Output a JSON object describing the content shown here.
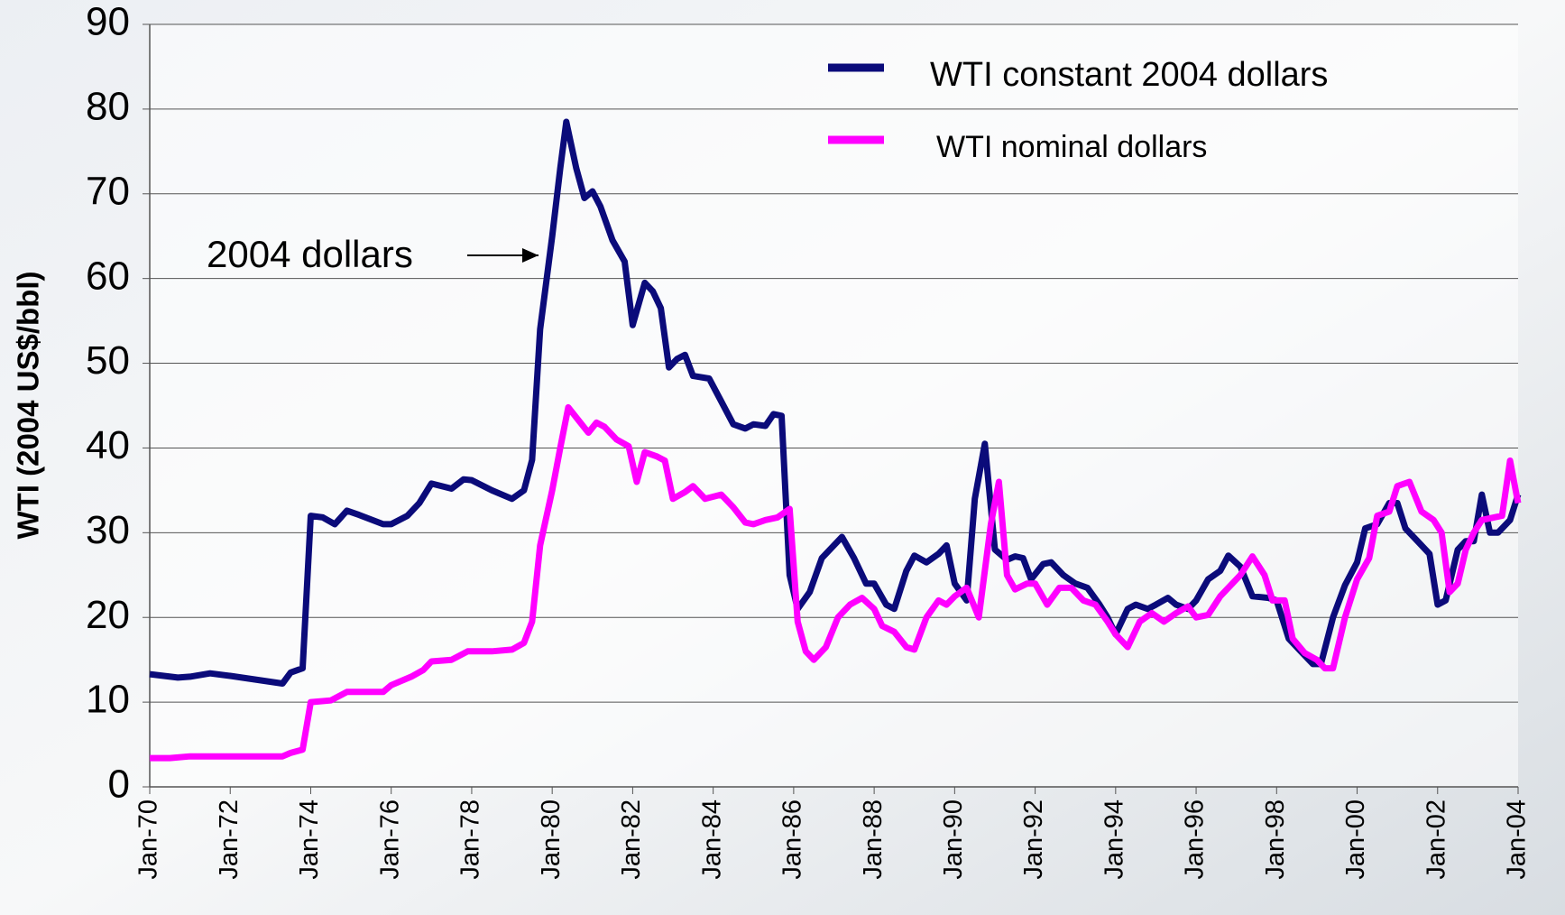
{
  "chart_data": {
    "type": "line",
    "y_label": "WTI (2004 US$/bbl)",
    "annotation": "2004 dollars",
    "ylim": [
      0,
      90
    ],
    "yticks": [
      0,
      10,
      20,
      30,
      40,
      50,
      60,
      70,
      80,
      90
    ],
    "xlim": [
      1970,
      2004
    ],
    "xticks": [
      {
        "value": 1970,
        "label": "Jan-70"
      },
      {
        "value": 1972,
        "label": "Jan-72"
      },
      {
        "value": 1974,
        "label": "Jan-74"
      },
      {
        "value": 1976,
        "label": "Jan-76"
      },
      {
        "value": 1978,
        "label": "Jan-78"
      },
      {
        "value": 1980,
        "label": "Jan-80"
      },
      {
        "value": 1982,
        "label": "Jan-82"
      },
      {
        "value": 1984,
        "label": "Jan-84"
      },
      {
        "value": 1986,
        "label": "Jan-86"
      },
      {
        "value": 1988,
        "label": "Jan-88"
      },
      {
        "value": 1990,
        "label": "Jan-90"
      },
      {
        "value": 1992,
        "label": "Jan-92"
      },
      {
        "value": 1994,
        "label": "Jan-94"
      },
      {
        "value": 1996,
        "label": "Jan-96"
      },
      {
        "value": 1998,
        "label": "Jan-98"
      },
      {
        "value": 2000,
        "label": "Jan-00"
      },
      {
        "value": 2002,
        "label": "Jan-02"
      },
      {
        "value": 2004,
        "label": "Jan-04"
      }
    ],
    "grid": true,
    "series": [
      {
        "name": "WTI constant 2004 dollars",
        "color": "#0b0b7a",
        "x": [
          1970.0,
          1970.7,
          1971.0,
          1971.5,
          1972.0,
          1973.3,
          1973.5,
          1973.8,
          1974.0,
          1974.3,
          1974.6,
          1974.9,
          1975.2,
          1975.8,
          1976.0,
          1976.4,
          1976.7,
          1977.0,
          1977.5,
          1977.8,
          1978.0,
          1978.5,
          1979.0,
          1979.3,
          1979.5,
          1979.7,
          1980.0,
          1980.2,
          1980.35,
          1980.6,
          1980.8,
          1981.0,
          1981.2,
          1981.5,
          1981.8,
          1982.0,
          1982.3,
          1982.5,
          1982.7,
          1982.9,
          1983.1,
          1983.3,
          1983.5,
          1983.9,
          1984.2,
          1984.5,
          1984.8,
          1985.0,
          1985.3,
          1985.5,
          1985.7,
          1985.9,
          1986.1,
          1986.4,
          1986.7,
          1987.0,
          1987.2,
          1987.5,
          1987.8,
          1988.0,
          1988.3,
          1988.5,
          1988.8,
          1989.0,
          1989.3,
          1989.6,
          1989.8,
          1990.0,
          1990.3,
          1990.5,
          1990.75,
          1991.0,
          1991.3,
          1991.5,
          1991.7,
          1991.9,
          1992.2,
          1992.4,
          1992.7,
          1993.0,
          1993.3,
          1993.6,
          1993.8,
          1994.0,
          1994.3,
          1994.5,
          1994.8,
          1995.0,
          1995.3,
          1995.5,
          1995.8,
          1996.0,
          1996.3,
          1996.6,
          1996.8,
          1997.1,
          1997.4,
          1997.8,
          1998.0,
          1998.3,
          1998.6,
          1998.9,
          1999.1,
          1999.4,
          1999.7,
          2000.0,
          2000.2,
          2000.5,
          2000.8,
          2001.0,
          2001.2,
          2001.5,
          2001.8,
          2002.0,
          2002.2,
          2002.5,
          2002.7,
          2002.9,
          2003.1,
          2003.3,
          2003.5,
          2003.8,
          2004.0
        ],
        "values": [
          13.3,
          12.9,
          13.0,
          13.4,
          13.1,
          12.2,
          13.5,
          14.0,
          32.0,
          31.8,
          31.0,
          32.6,
          32.1,
          31.0,
          31.0,
          32.0,
          33.5,
          35.8,
          35.2,
          36.3,
          36.2,
          35.0,
          34.0,
          35.0,
          38.6,
          54.0,
          65.0,
          73.0,
          78.5,
          73.0,
          69.5,
          70.3,
          68.5,
          64.5,
          62.0,
          54.5,
          59.5,
          58.5,
          56.5,
          49.5,
          50.5,
          51.0,
          48.5,
          48.2,
          45.5,
          42.8,
          42.3,
          42.8,
          42.6,
          44.0,
          43.8,
          25.0,
          21.0,
          23.0,
          27.0,
          28.5,
          29.5,
          27.0,
          24.0,
          24.0,
          21.5,
          21.0,
          25.5,
          27.3,
          26.5,
          27.5,
          28.5,
          24.0,
          22.0,
          34.0,
          40.5,
          28.0,
          26.8,
          27.2,
          27.0,
          24.5,
          26.3,
          26.5,
          25.0,
          24.0,
          23.5,
          21.5,
          20.0,
          18.0,
          21.0,
          21.5,
          21.0,
          21.5,
          22.3,
          21.5,
          21.0,
          22.0,
          24.5,
          25.5,
          27.3,
          26.0,
          22.5,
          22.3,
          22.0,
          17.5,
          16.0,
          14.5,
          14.5,
          20.0,
          23.8,
          26.5,
          30.5,
          31.0,
          33.5,
          33.5,
          30.5,
          29.0,
          27.5,
          21.5,
          22.0,
          28.0,
          29.0,
          29.0,
          34.5,
          30.0,
          30.0,
          31.5,
          34.5
        ]
      },
      {
        "name": "WTI nominal dollars",
        "color": "#ff00ff",
        "x": [
          1970.0,
          1970.5,
          1971.0,
          1972.0,
          1973.3,
          1973.5,
          1973.8,
          1974.0,
          1974.5,
          1974.9,
          1975.8,
          1976.0,
          1976.5,
          1976.8,
          1977.0,
          1977.5,
          1977.9,
          1978.5,
          1979.0,
          1979.3,
          1979.5,
          1979.7,
          1980.0,
          1980.2,
          1980.4,
          1980.7,
          1980.9,
          1981.1,
          1981.3,
          1981.6,
          1981.9,
          1982.1,
          1982.3,
          1982.6,
          1982.8,
          1983.0,
          1983.3,
          1983.5,
          1983.8,
          1984.2,
          1984.5,
          1984.8,
          1985.0,
          1985.3,
          1985.6,
          1985.9,
          1986.1,
          1986.3,
          1986.5,
          1986.8,
          1987.1,
          1987.4,
          1987.7,
          1988.0,
          1988.2,
          1988.5,
          1988.8,
          1989.0,
          1989.3,
          1989.6,
          1989.8,
          1990.0,
          1990.3,
          1990.6,
          1990.9,
          1991.1,
          1991.3,
          1991.5,
          1991.8,
          1992.0,
          1992.3,
          1992.6,
          1992.9,
          1993.2,
          1993.5,
          1993.8,
          1994.0,
          1994.3,
          1994.6,
          1994.9,
          1995.2,
          1995.5,
          1995.8,
          1996.0,
          1996.3,
          1996.6,
          1996.9,
          1997.1,
          1997.4,
          1997.7,
          1997.9,
          1998.2,
          1998.4,
          1998.7,
          1999.0,
          1999.2,
          1999.4,
          1999.7,
          2000.0,
          2000.3,
          2000.5,
          2000.8,
          2001.0,
          2001.3,
          2001.6,
          2001.9,
          2002.1,
          2002.3,
          2002.5,
          2002.7,
          2002.9,
          2003.1,
          2003.4,
          2003.6,
          2003.8,
          2004.0
        ],
        "values": [
          3.4,
          3.4,
          3.6,
          3.6,
          3.6,
          4.0,
          4.4,
          10.0,
          10.2,
          11.2,
          11.2,
          12.0,
          13.0,
          13.8,
          14.8,
          15.0,
          16.0,
          16.0,
          16.2,
          17.0,
          19.5,
          28.5,
          35.0,
          40.0,
          44.8,
          43.0,
          41.8,
          43.0,
          42.5,
          41.0,
          40.2,
          36.0,
          39.5,
          39.0,
          38.5,
          34.0,
          34.8,
          35.5,
          34.0,
          34.5,
          33.0,
          31.2,
          31.0,
          31.5,
          31.8,
          32.8,
          19.5,
          16.0,
          15.0,
          16.5,
          20.0,
          21.5,
          22.3,
          21.0,
          19.0,
          18.3,
          16.5,
          16.2,
          20.0,
          22.0,
          21.5,
          22.5,
          23.5,
          20.0,
          31.0,
          36.0,
          25.0,
          23.3,
          24.0,
          24.0,
          21.5,
          23.5,
          23.5,
          22.0,
          21.5,
          19.5,
          18.0,
          16.5,
          19.5,
          20.5,
          19.5,
          20.5,
          21.3,
          20.0,
          20.3,
          22.5,
          24.0,
          25.0,
          27.2,
          25.0,
          22.0,
          22.0,
          17.5,
          15.8,
          15.0,
          14.0,
          14.0,
          20.0,
          24.5,
          27.0,
          32.0,
          32.5,
          35.5,
          36.0,
          32.5,
          31.5,
          30.0,
          23.0,
          24.0,
          28.0,
          30.0,
          31.5,
          31.8,
          32.0,
          38.5,
          33.5
        ]
      }
    ]
  }
}
